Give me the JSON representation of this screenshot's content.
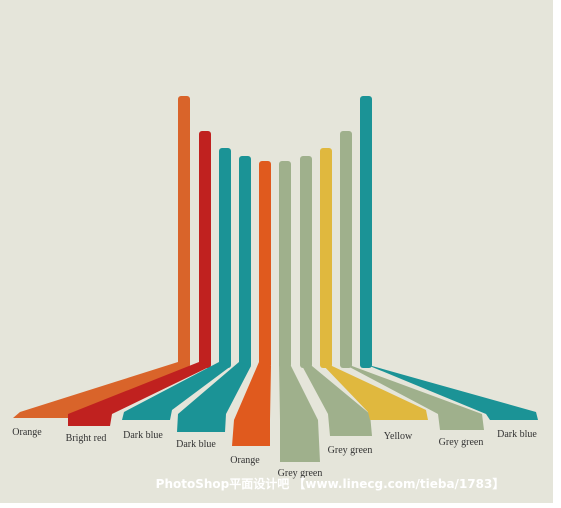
{
  "labels": [
    "Orange",
    "Bright red",
    "Dark blue",
    "Dark blue",
    "Orange",
    "Grey green",
    "Grey green",
    "Yellow",
    "Grey green",
    "Dark blue"
  ],
  "watermark": "PhotoShop平面设计吧 【www.linecg.com/tieba/1783】"
}
